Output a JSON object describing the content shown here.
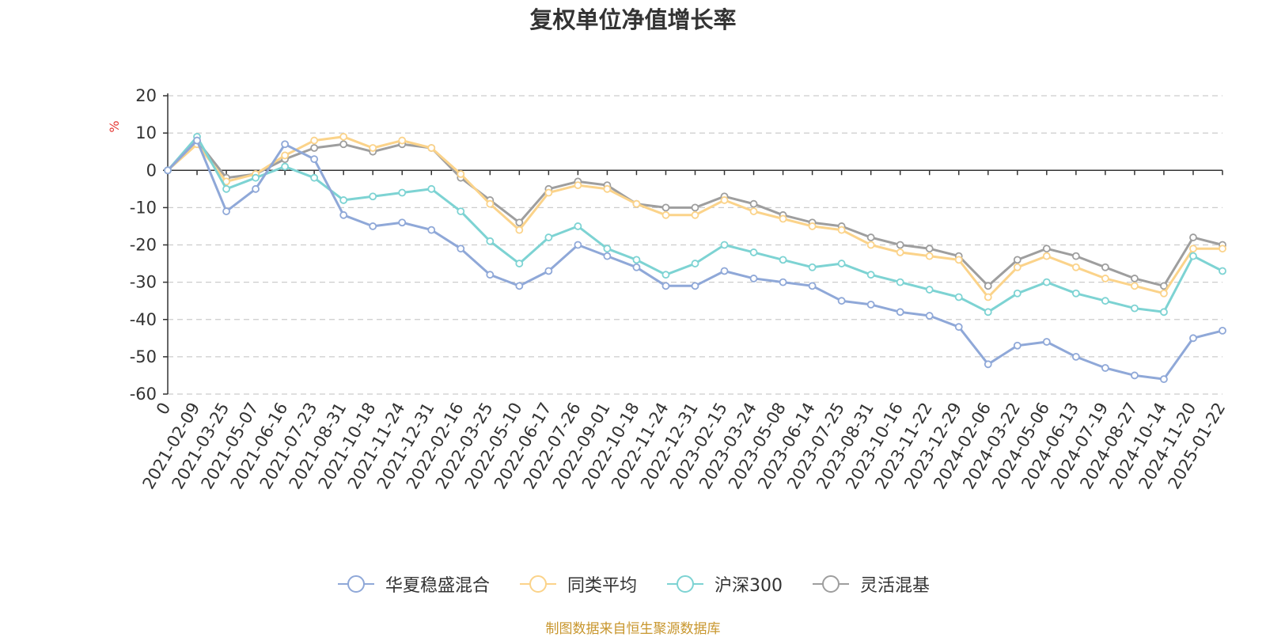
{
  "chart_data": {
    "type": "line",
    "title": "复权单位净值增长率",
    "ylabel": "%",
    "xlabel": "",
    "ylim": [
      -60,
      20
    ],
    "yticks": [
      "20",
      "10",
      "0",
      "-10",
      "-20",
      "-30",
      "-40",
      "-50",
      "-60"
    ],
    "categories": [
      "0",
      "2021-02-09",
      "2021-03-25",
      "2021-05-07",
      "2021-06-16",
      "2021-07-23",
      "2021-08-31",
      "2021-10-18",
      "2021-11-24",
      "2021-12-31",
      "2022-02-16",
      "2022-03-25",
      "2022-05-10",
      "2022-06-17",
      "2022-07-26",
      "2022-09-01",
      "2022-10-18",
      "2022-11-24",
      "2022-12-31",
      "2023-02-15",
      "2023-03-24",
      "2023-05-08",
      "2023-06-14",
      "2023-07-25",
      "2023-08-31",
      "2023-10-16",
      "2023-11-22",
      "2023-12-29",
      "2024-02-06",
      "2024-03-22",
      "2024-05-06",
      "2024-06-13",
      "2024-07-19",
      "2024-08-27",
      "2024-10-14",
      "2024-11-20",
      "2025-01-22"
    ],
    "series": [
      {
        "name": "华夏稳盛混合",
        "color": "#8fa8d8",
        "values": [
          0,
          8,
          -11,
          -5,
          7,
          3,
          -12,
          -15,
          -14,
          -16,
          -21,
          -28,
          -31,
          -27,
          -20,
          -23,
          -26,
          -31,
          -31,
          -27,
          -29,
          -30,
          -31,
          -35,
          -36,
          -38,
          -39,
          -42,
          -52,
          -47,
          -46,
          -50,
          -53,
          -55,
          -56,
          -45,
          -43
        ]
      },
      {
        "name": "同类平均",
        "color": "#fbd38a",
        "values": [
          0,
          7,
          -3,
          -1,
          4,
          8,
          9,
          6,
          8,
          6,
          -1,
          -9,
          -16,
          -6,
          -4,
          -5,
          -9,
          -12,
          -12,
          -8,
          -11,
          -13,
          -15,
          -16,
          -20,
          -22,
          -23,
          -24,
          -34,
          -26,
          -23,
          -26,
          -29,
          -31,
          -33,
          -21,
          -21
        ]
      },
      {
        "name": "沪深300",
        "color": "#7dd3d3",
        "values": [
          0,
          9,
          -5,
          -2,
          1,
          -2,
          -8,
          -7,
          -6,
          -5,
          -11,
          -19,
          -25,
          -18,
          -15,
          -21,
          -24,
          -28,
          -25,
          -20,
          -22,
          -24,
          -26,
          -25,
          -28,
          -30,
          -32,
          -34,
          -38,
          -33,
          -30,
          -33,
          -35,
          -37,
          -38,
          -23,
          -27
        ]
      },
      {
        "name": "灵活混基",
        "color": "#9e9e9e",
        "values": [
          0,
          8,
          -2,
          -1,
          3,
          6,
          7,
          5,
          7,
          6,
          -2,
          -8,
          -14,
          -5,
          -3,
          -4,
          -9,
          -10,
          -10,
          -7,
          -9,
          -12,
          -14,
          -15,
          -18,
          -20,
          -21,
          -23,
          -31,
          -24,
          -21,
          -23,
          -26,
          -29,
          -31,
          -18,
          -20
        ]
      }
    ]
  },
  "source_note": "制图数据来自恒生聚源数据库"
}
